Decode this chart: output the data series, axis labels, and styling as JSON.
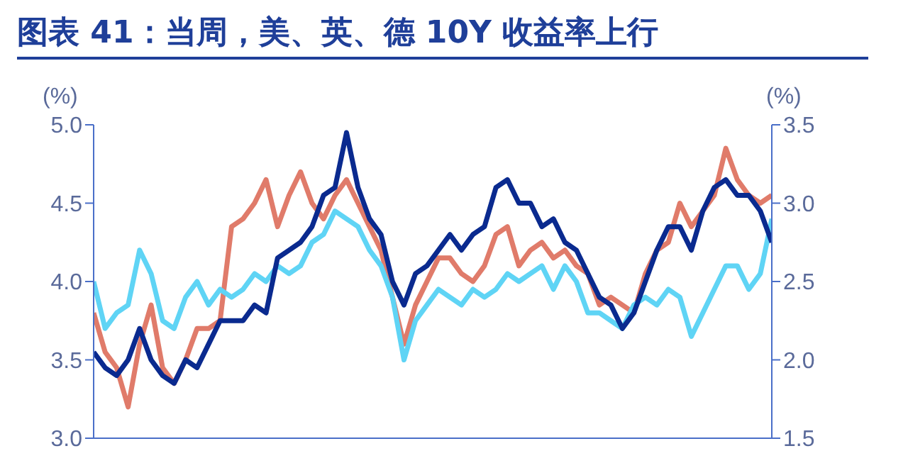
{
  "chart_data": {
    "type": "line",
    "title": "图表 41：当周，美、英、德 10Y 收益率上行",
    "ylabel": "(%)",
    "y2label": "(%)",
    "categories": [
      null,
      null,
      null,
      null,
      null,
      null,
      null,
      null,
      null,
      null,
      null,
      null,
      null,
      null,
      null,
      null,
      null,
      null,
      null,
      null,
      null,
      null,
      null,
      null,
      null,
      null,
      null,
      null,
      null,
      null,
      null,
      null,
      null,
      null,
      null,
      null,
      null,
      null,
      null,
      null,
      null,
      null,
      null,
      null,
      null,
      null,
      null,
      null,
      null,
      null,
      null,
      null,
      null,
      null,
      null,
      null,
      null,
      null,
      null,
      null
    ],
    "ylim": [
      3.0,
      5.0
    ],
    "yticks": [
      {
        "value": 3.0,
        "label": "3.0"
      },
      3.5,
      {
        "value": 4.0,
        "label": "4.0"
      },
      4.5,
      {
        "value": 5.0,
        "label": "5.0"
      }
    ],
    "y2lim": [
      1.5,
      3.5
    ],
    "y2ticks": [
      1.5,
      {
        "value": 2.0,
        "label": "2.0"
      },
      2.5,
      {
        "value": 3.0,
        "label": "3.0"
      },
      3.5
    ],
    "grid": false,
    "legend": false,
    "marker": "none",
    "line_style": "solid",
    "series": [
      {
        "color": "#e07b6a",
        "values": [
          3.8,
          3.55,
          3.45,
          3.2,
          3.6,
          3.85,
          3.45,
          3.35,
          3.5,
          3.7,
          3.7,
          3.75,
          4.35,
          4.4,
          4.5,
          4.65,
          4.35,
          4.55,
          4.7,
          4.5,
          4.4,
          4.55,
          4.65,
          4.5,
          4.35,
          4.2,
          3.9,
          3.6,
          3.85,
          4.0,
          4.15,
          4.15,
          4.05,
          4.0,
          4.1,
          4.3,
          4.35,
          4.1,
          4.2,
          4.25,
          4.15,
          4.2,
          4.1,
          4.05,
          3.85,
          3.9,
          3.85,
          3.8,
          4.05,
          4.2,
          4.25,
          4.5,
          4.35,
          4.45,
          4.55,
          4.85,
          4.65,
          4.55,
          4.5,
          4.55
        ]
      },
      {
        "color": "#5fd4f5",
        "axis": "y2",
        "values": [
          2.5,
          2.2,
          2.3,
          2.35,
          2.7,
          2.55,
          2.25,
          2.2,
          2.4,
          2.5,
          2.35,
          2.45,
          2.4,
          2.45,
          2.55,
          2.5,
          2.6,
          2.55,
          2.6,
          2.75,
          2.8,
          2.95,
          2.9,
          2.85,
          2.7,
          2.6,
          2.4,
          2.0,
          2.25,
          2.35,
          2.45,
          2.4,
          2.35,
          2.45,
          2.4,
          2.45,
          2.55,
          2.5,
          2.55,
          2.6,
          2.45,
          2.6,
          2.5,
          2.3,
          2.3,
          2.25,
          2.2,
          2.35,
          2.4,
          2.35,
          2.45,
          2.4,
          2.15,
          2.3,
          2.45,
          2.6,
          2.6,
          2.45,
          2.55,
          2.9
        ]
      },
      {
        "color": "#0a2a8f",
        "values": [
          3.55,
          3.45,
          3.4,
          3.5,
          3.7,
          3.5,
          3.4,
          3.35,
          3.5,
          3.45,
          3.6,
          3.75,
          3.75,
          3.75,
          3.85,
          3.8,
          4.15,
          4.2,
          4.25,
          4.35,
          4.55,
          4.6,
          4.95,
          4.6,
          4.4,
          4.3,
          4.0,
          3.85,
          4.05,
          4.1,
          4.2,
          4.3,
          4.2,
          4.3,
          4.35,
          4.6,
          4.65,
          4.5,
          4.5,
          4.35,
          4.4,
          4.25,
          4.2,
          4.05,
          3.9,
          3.85,
          3.7,
          3.8,
          4.0,
          4.2,
          4.35,
          4.35,
          4.2,
          4.45,
          4.6,
          4.65,
          4.55,
          4.55,
          4.45,
          4.25
        ]
      }
    ]
  }
}
